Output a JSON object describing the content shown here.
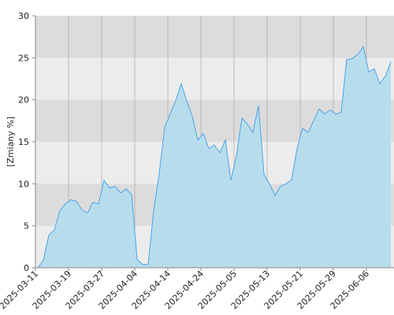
{
  "chart_data": {
    "type": "area",
    "y_label": "[Zmiany %]",
    "categories": [
      "2025-03-11",
      null,
      null,
      null,
      null,
      null,
      "2025-03-19",
      null,
      null,
      null,
      null,
      null,
      "2025-03-27",
      null,
      null,
      null,
      null,
      null,
      "2025-04-04",
      null,
      null,
      null,
      null,
      null,
      "2025-04-14",
      null,
      null,
      null,
      null,
      null,
      "2025-04-24",
      null,
      null,
      null,
      null,
      null,
      "2025-05-05",
      null,
      null,
      null,
      null,
      null,
      "2025-05-13",
      null,
      null,
      null,
      null,
      null,
      "2025-05-21",
      null,
      null,
      null,
      null,
      null,
      "2025-05-29",
      null,
      null,
      null,
      null,
      null,
      "2025-06-06",
      null,
      null,
      null,
      null
    ],
    "values": [
      0,
      0.9,
      3.9,
      4.5,
      6.8,
      7.6,
      8.1,
      7.9,
      6.9,
      6.5,
      7.8,
      7.6,
      10.4,
      9.5,
      9.7,
      8.9,
      9.4,
      8.7,
      1.0,
      0.4,
      0.4,
      6.8,
      11.2,
      16.7,
      18.3,
      19.9,
      21.9,
      19.9,
      18.0,
      15.2,
      16.0,
      14.2,
      14.6,
      13.7,
      15.2,
      10.4,
      13.3,
      17.8,
      17.1,
      16.1,
      19.3,
      11.1,
      10.0,
      8.6,
      9.7,
      10.0,
      10.5,
      14.2,
      16.6,
      16.1,
      17.5,
      18.9,
      18.3,
      18.8,
      18.3,
      18.5,
      24.8,
      24.9,
      25.4,
      26.3,
      23.3,
      23.7,
      21.9,
      22.8,
      24.5
    ],
    "color": "#4da3e6",
    "fill": "#b7dded",
    "ylim": [
      0,
      30
    ],
    "yticks": [
      0,
      5,
      10,
      15,
      20,
      25,
      30
    ],
    "band_colors": [
      "#ececec",
      "#dcdcdc"
    ]
  }
}
